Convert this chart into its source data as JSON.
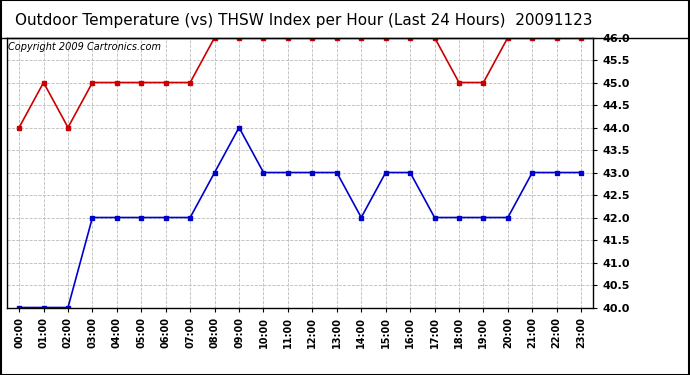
{
  "title": "Outdoor Temperature (vs) THSW Index per Hour (Last 24 Hours)  20091123",
  "copyright": "Copyright 2009 Cartronics.com",
  "x_labels": [
    "00:00",
    "01:00",
    "02:00",
    "03:00",
    "04:00",
    "05:00",
    "06:00",
    "07:00",
    "08:00",
    "09:00",
    "10:00",
    "11:00",
    "12:00",
    "13:00",
    "14:00",
    "15:00",
    "16:00",
    "17:00",
    "18:00",
    "19:00",
    "20:00",
    "21:00",
    "22:00",
    "23:00"
  ],
  "blue_data": [
    40.0,
    40.0,
    40.0,
    42.0,
    42.0,
    42.0,
    42.0,
    42.0,
    43.0,
    44.0,
    43.0,
    43.0,
    43.0,
    43.0,
    42.0,
    43.0,
    43.0,
    42.0,
    42.0,
    42.0,
    42.0,
    43.0,
    43.0,
    43.0
  ],
  "red_data": [
    44.0,
    45.0,
    44.0,
    45.0,
    45.0,
    45.0,
    45.0,
    45.0,
    46.0,
    46.0,
    46.0,
    46.0,
    46.0,
    46.0,
    46.0,
    46.0,
    46.0,
    46.0,
    45.0,
    45.0,
    46.0,
    46.0,
    46.0,
    46.0
  ],
  "ylim": [
    40.0,
    46.0
  ],
  "ytick_step": 0.5,
  "blue_color": "#0000cc",
  "red_color": "#cc0000",
  "bg_color": "#ffffff",
  "grid_color": "#bbbbbb",
  "title_fontsize": 11,
  "copyright_fontsize": 7,
  "marker": "s",
  "marker_size": 3.0,
  "linewidth": 1.2
}
